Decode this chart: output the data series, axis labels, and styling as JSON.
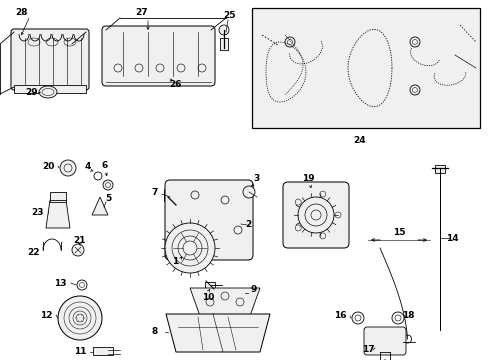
{
  "background_color": "#ffffff",
  "line_color": "#000000",
  "fig_width": 4.89,
  "fig_height": 3.6,
  "dpi": 100,
  "gray_fill": "#e8e8e8",
  "light_fill": "#f0f0f0"
}
